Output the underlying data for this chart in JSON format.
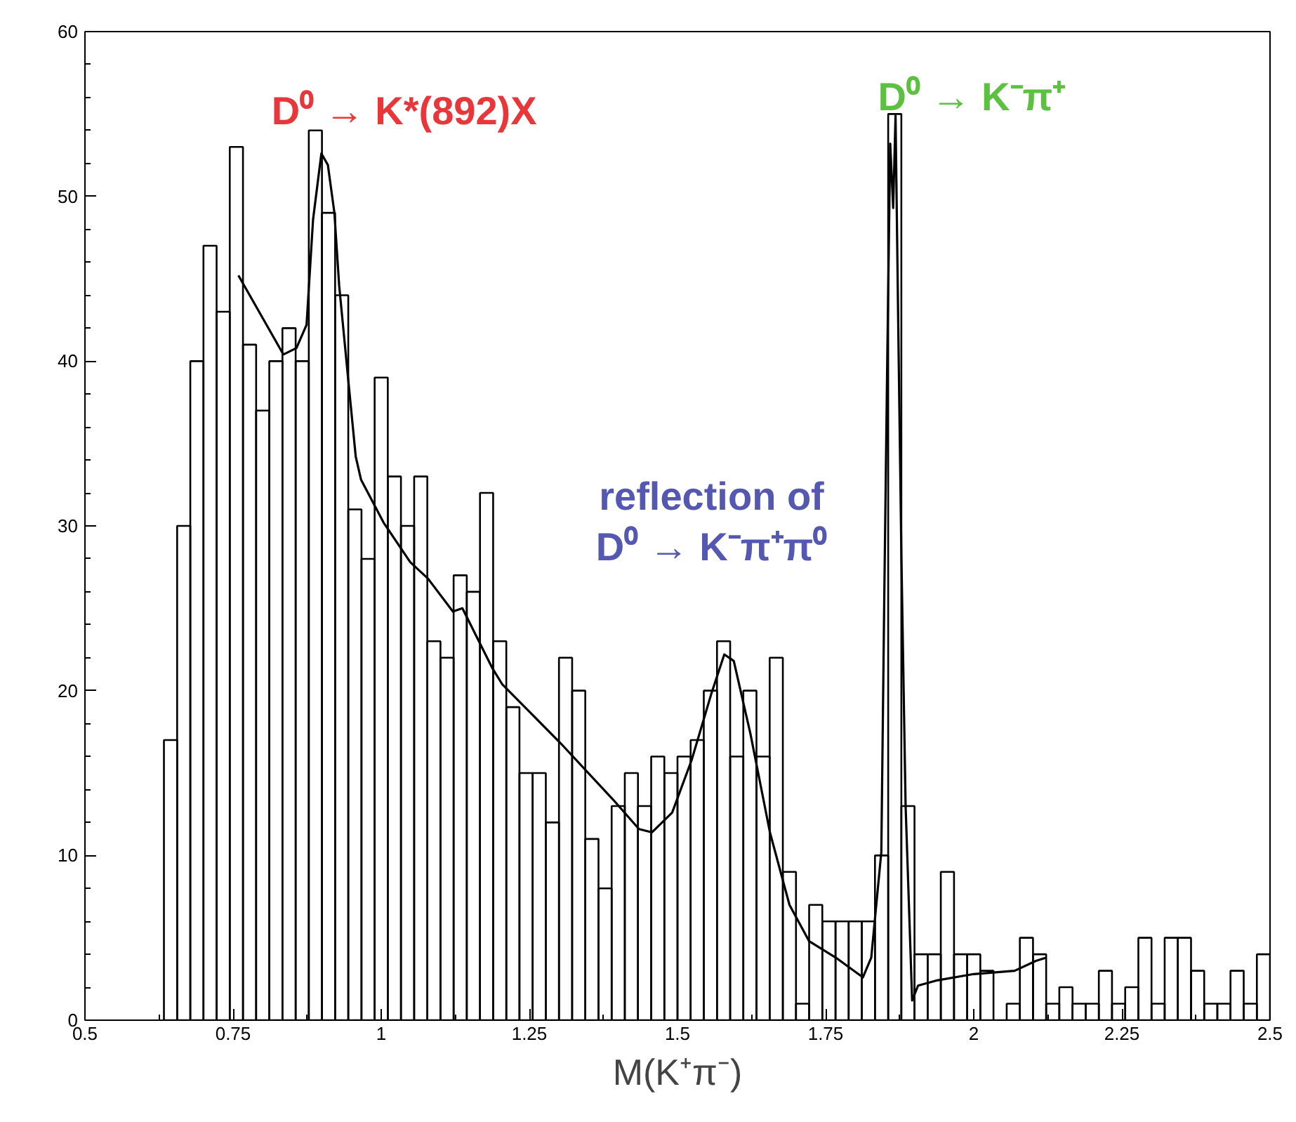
{
  "chart_data": {
    "type": "histogram",
    "bins": [
      0.6333,
      0.6556,
      0.6778,
      0.7,
      0.7222,
      0.7444,
      0.7667,
      0.7889,
      0.8111,
      0.8333,
      0.8556,
      0.8778,
      0.9,
      0.9222,
      0.9444,
      0.9667,
      0.9889,
      1.0111,
      1.0333,
      1.0556,
      1.0778,
      1.1,
      1.1222,
      1.1444,
      1.1667,
      1.1889,
      1.2111,
      1.2333,
      1.2556,
      1.2778,
      1.3,
      1.3222,
      1.3444,
      1.3667,
      1.3889,
      1.4111,
      1.4333,
      1.4556,
      1.4778,
      1.5,
      1.5222,
      1.5444,
      1.5667,
      1.5889,
      1.6111,
      1.6333,
      1.6556,
      1.6778,
      1.7,
      1.7222,
      1.7444,
      1.7667,
      1.7889,
      1.8111,
      1.8333,
      1.8556,
      1.8778,
      1.9,
      1.9222,
      1.9444,
      1.9667,
      1.9889,
      2.0111,
      2.0333,
      2.0556,
      2.0778,
      2.1,
      2.1222,
      2.1444,
      2.1667,
      2.1889,
      2.2111,
      2.2333,
      2.2556,
      2.2778,
      2.3,
      2.3222,
      2.3444,
      2.3667,
      2.3889,
      2.4111,
      2.4333,
      2.4556,
      2.4778,
      2.5
    ],
    "series": [
      {
        "color": "#000000",
        "values": [
          17,
          30,
          40,
          47,
          43,
          53,
          41,
          37,
          40,
          42,
          40,
          54,
          49,
          44,
          31,
          28,
          39,
          33,
          30,
          33,
          23,
          22,
          27,
          26,
          32,
          23,
          19,
          15,
          15,
          12,
          22,
          20,
          11,
          8,
          13,
          15,
          13,
          16,
          15,
          16,
          17,
          20,
          23,
          16,
          20,
          16,
          22,
          9,
          1,
          7,
          6,
          6,
          6,
          6,
          10,
          55,
          13,
          4,
          4,
          9,
          4,
          4,
          3,
          0,
          1,
          5,
          4,
          1,
          2,
          1,
          1,
          3,
          1,
          2,
          5,
          1,
          5,
          5,
          3,
          1,
          1,
          3,
          1,
          4
        ]
      },
      {
        "type": "line",
        "color": "#000000",
        "x": [
          0.759,
          0.835,
          0.857,
          0.874,
          0.885,
          0.899,
          0.91,
          0.921,
          0.929,
          0.944,
          0.957,
          0.966,
          1.004,
          1.049,
          1.079,
          1.121,
          1.137,
          1.187,
          1.204,
          1.303,
          1.391,
          1.435,
          1.457,
          1.491,
          1.524,
          1.557,
          1.579,
          1.595,
          1.623,
          1.656,
          1.689,
          1.722,
          1.767,
          1.813,
          1.827,
          1.844,
          1.849,
          1.854,
          1.859,
          1.864,
          1.868,
          1.873,
          1.878,
          1.885,
          1.896,
          1.906,
          1.936,
          2.0,
          2.069,
          2.105,
          2.123
        ],
        "values": [
          45.2,
          40.4,
          40.8,
          42.2,
          48.6,
          52.6,
          51.9,
          49,
          44.6,
          39,
          34.2,
          32.8,
          30.2,
          27.8,
          26.8,
          24.8,
          25,
          21.4,
          20.4,
          16.8,
          13.4,
          11.6,
          11.4,
          12.6,
          15.8,
          19.8,
          22.2,
          21.8,
          17.4,
          11.4,
          7,
          4.8,
          3.8,
          2.6,
          3.8,
          10.2,
          25.7,
          40,
          53.2,
          49.3,
          54.9,
          41,
          27.9,
          13,
          1.2,
          2.1,
          2.4,
          2.8,
          3,
          3.6,
          3.8
        ]
      }
    ],
    "xlabel": "M(K⁺π⁻)",
    "xlim": [
      0.5,
      2.5
    ],
    "ylim": [
      0,
      60
    ],
    "xticks": [
      0.5,
      0.75,
      1,
      1.25,
      1.5,
      1.75,
      2,
      2.25,
      2.5
    ],
    "yticks": [
      0,
      10,
      20,
      30,
      40,
      50,
      60
    ],
    "grid": false,
    "annotations": [
      "D⁰ → K*(892)X",
      "D⁰ → K⁻π⁺",
      "reflection of\nD⁰ → K⁻π⁺π⁰"
    ]
  }
}
